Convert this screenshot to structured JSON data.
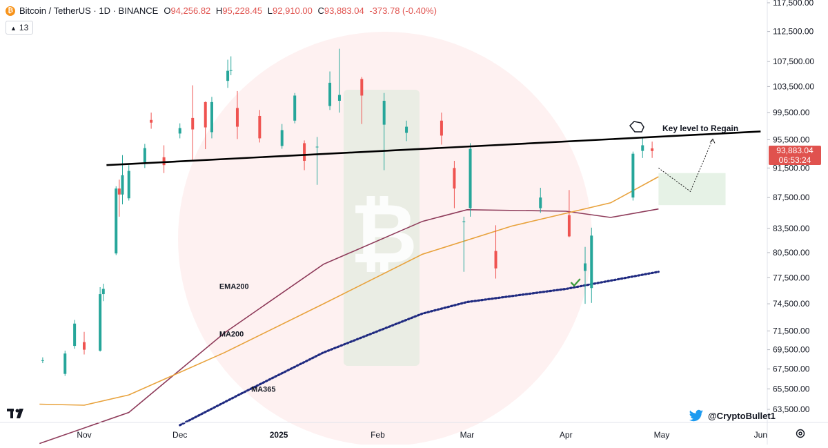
{
  "header": {
    "symbol": "Bitcoin / TetherUS · 1D · BINANCE",
    "open_label": "O",
    "open": "94,256.82",
    "high_label": "H",
    "high": "95,228.45",
    "low_label": "L",
    "low": "92,910.00",
    "close_label": "C",
    "close": "93,883.04",
    "change": "-373.78 (-0.40%)"
  },
  "indicator_badge": {
    "count": "13"
  },
  "price_tag": {
    "price": "93,883.04",
    "countdown": "06:53:24"
  },
  "twitter": {
    "handle": "@CryptoBullet1"
  },
  "chart_data": {
    "type": "line",
    "y_axis": {
      "side": "right",
      "ticks": [
        117500,
        112500,
        107500,
        103500,
        99500,
        95500,
        91500,
        87500,
        83500,
        80500,
        77500,
        74500,
        71500,
        69500,
        67500,
        65500,
        63500
      ],
      "tick_labels": [
        "117,500.00",
        "112,500.00",
        "107,500.00",
        "103,500.00",
        "99,500.00",
        "95,500.00",
        "91,500.00",
        "87,500.00",
        "83,500.00",
        "80,500.00",
        "77,500.00",
        "74,500.00",
        "71,500.00",
        "69,500.00",
        "67,500.00",
        "65,500.00",
        "63,500.00"
      ],
      "scale": "log"
    },
    "x_axis": {
      "labels": [
        "Nov",
        "Dec",
        "2025",
        "Feb",
        "Mar",
        "Apr",
        "May",
        "Jun"
      ],
      "label_dates": [
        "2024-11-01",
        "2024-12-01",
        "2025-01-01",
        "2025-02-01",
        "2025-03-01",
        "2025-04-01",
        "2025-05-01",
        "2025-06-01"
      ]
    },
    "candles": {
      "up_color": "#26a69a",
      "down_color": "#ef5350",
      "points": [
        [
          "2024-10-19",
          68400,
          68700,
          68100,
          68400
        ],
        [
          "2024-10-26",
          67000,
          69400,
          66800,
          69100
        ],
        [
          "2024-10-29",
          69900,
          72700,
          69600,
          72300
        ],
        [
          "2024-11-01",
          70300,
          71400,
          69000,
          69500
        ],
        [
          "2024-11-06",
          69400,
          76400,
          69300,
          75600
        ],
        [
          "2024-11-07",
          75600,
          76800,
          74800,
          76200
        ],
        [
          "2024-11-11",
          80400,
          89000,
          80200,
          88700
        ],
        [
          "2024-11-12",
          88700,
          89900,
          85000,
          87900
        ],
        [
          "2024-11-13",
          87900,
          93300,
          86600,
          90500
        ],
        [
          "2024-11-15",
          87400,
          91900,
          87100,
          91100
        ],
        [
          "2024-11-20",
          92300,
          94900,
          91500,
          94300
        ],
        [
          "2024-11-22",
          98400,
          99500,
          97100,
          98000
        ],
        [
          "2024-11-26",
          93000,
          94700,
          90800,
          91900
        ],
        [
          "2024-12-01",
          96400,
          97900,
          95700,
          97200
        ],
        [
          "2024-12-05",
          98700,
          103700,
          92500,
          97000
        ],
        [
          "2024-12-09",
          101100,
          101200,
          94150,
          97300
        ],
        [
          "2024-12-11",
          96600,
          101900,
          95700,
          101100
        ],
        [
          "2024-12-16",
          104400,
          107800,
          103300,
          106000
        ],
        [
          "2024-12-17",
          106000,
          108350,
          105300,
          106100
        ],
        [
          "2024-12-19",
          100200,
          102800,
          95600,
          97400
        ],
        [
          "2024-12-26",
          99000,
          99900,
          95100,
          95700
        ],
        [
          "2025-01-02",
          94600,
          97800,
          94200,
          96900
        ],
        [
          "2025-01-06",
          98300,
          102500,
          97900,
          102100
        ],
        [
          "2025-01-09",
          95000,
          95400,
          91200,
          92500
        ],
        [
          "2025-01-13",
          94500,
          95900,
          89200,
          94500
        ],
        [
          "2025-01-17",
          100500,
          105900,
          99900,
          104100
        ],
        [
          "2025-01-20",
          101300,
          109600,
          99500,
          102200
        ],
        [
          "2025-01-27",
          104700,
          105000,
          97800,
          102100
        ],
        [
          "2025-02-03",
          97700,
          102500,
          91200,
          101300
        ],
        [
          "2025-02-10",
          96500,
          98300,
          95300,
          97400
        ],
        [
          "2025-02-21",
          98300,
          99500,
          94800,
          96100
        ],
        [
          "2025-02-25",
          91500,
          92500,
          86100,
          88700
        ],
        [
          "2025-02-28",
          84300,
          85000,
          78200,
          84400
        ],
        [
          "2025-03-02",
          86100,
          95000,
          85000,
          94200
        ],
        [
          "2025-03-10",
          80700,
          83900,
          77400,
          78600
        ],
        [
          "2025-03-24",
          86100,
          88800,
          85500,
          87500
        ],
        [
          "2025-04-02",
          85200,
          88500,
          82400,
          82500
        ],
        [
          "2025-04-07",
          78300,
          81200,
          74500,
          79200
        ],
        [
          "2025-04-09",
          76300,
          83600,
          74600,
          82600
        ],
        [
          "2025-04-22",
          87500,
          93800,
          87100,
          93500
        ],
        [
          "2025-04-25",
          93900,
          95700,
          92900,
          94700
        ],
        [
          "2025-04-28",
          94256.82,
          95228.45,
          92910.0,
          93883.04
        ]
      ]
    },
    "series": [
      {
        "name": "EMA200",
        "color": "#8e3b5a",
        "style": "solid",
        "points": [
          [
            "2024-10-18",
            60300
          ],
          [
            "2024-11-15",
            63200
          ],
          [
            "2024-12-15",
            71300
          ],
          [
            "2025-01-15",
            79100
          ],
          [
            "2025-02-15",
            84400
          ],
          [
            "2025-03-01",
            85900
          ],
          [
            "2025-04-01",
            85700
          ],
          [
            "2025-04-15",
            84900
          ],
          [
            "2025-04-30",
            86000
          ]
        ]
      },
      {
        "name": "MA200",
        "color": "#e8a23c",
        "style": "solid",
        "points": [
          [
            "2024-10-18",
            64000
          ],
          [
            "2024-11-01",
            63900
          ],
          [
            "2024-11-15",
            64900
          ],
          [
            "2024-12-15",
            69200
          ],
          [
            "2025-01-15",
            74500
          ],
          [
            "2025-02-15",
            80300
          ],
          [
            "2025-03-15",
            83800
          ],
          [
            "2025-04-15",
            86800
          ],
          [
            "2025-04-30",
            90300
          ]
        ]
      },
      {
        "name": "MA365",
        "color": "#1f2a80",
        "style": "dotted",
        "points": [
          [
            "2024-12-01",
            62000
          ],
          [
            "2024-12-20",
            65000
          ],
          [
            "2025-01-15",
            69200
          ],
          [
            "2025-02-15",
            73400
          ],
          [
            "2025-03-01",
            74700
          ],
          [
            "2025-04-01",
            76200
          ],
          [
            "2025-04-30",
            78200
          ]
        ]
      }
    ],
    "trendline": {
      "color": "#000000",
      "points": [
        [
          "2024-11-08",
          91900
        ],
        [
          "2025-06-01",
          96700
        ]
      ],
      "label": "Key level to Regain"
    },
    "annotations": [
      {
        "text": "EMA200",
        "date": "2024-12-22",
        "price": 76200
      },
      {
        "text": "MA200",
        "date": "2024-12-22",
        "price": 70900
      },
      {
        "text": "MA365",
        "date": "2025-01-01",
        "price": 65200
      }
    ],
    "projection": {
      "color": "#1a1a1a",
      "path": [
        [
          "2025-04-30",
          91500
        ],
        [
          "2025-05-10",
          88300
        ],
        [
          "2025-05-17",
          95600
        ]
      ]
    },
    "zone": {
      "color": "#e6f2e6",
      "from_date": "2025-04-30",
      "to_date": "2025-05-21",
      "price_low": 86500,
      "price_high": 90800
    },
    "checkmark": {
      "date": "2025-04-04",
      "price": 76900,
      "color": "#3c9a3c"
    },
    "grid": false,
    "watermark": "bitcoin-logo-icon"
  }
}
